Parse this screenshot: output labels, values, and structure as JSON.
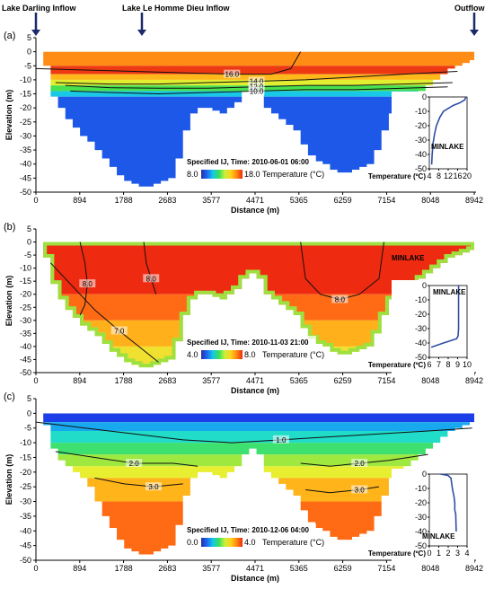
{
  "header": {
    "left_label": "Lake Darling Inflow",
    "mid_label": "Lake Le Homme Dieu Inflow",
    "right_label": "Outflow"
  },
  "colorbar_gradient": [
    "#2a2aa8",
    "#1b6bf2",
    "#14c8e8",
    "#35e05a",
    "#c8f03a",
    "#ffd21a",
    "#ff8a10",
    "#ee2a10"
  ],
  "chart_data": [
    {
      "type": "heatmap",
      "panel": "(a)",
      "xlabel": "Distance (m)",
      "ylabel": "Elevation (m)",
      "xticks": [
        0,
        894,
        1788,
        2683,
        3577,
        4471,
        5365,
        6259,
        7154,
        8048,
        8942
      ],
      "yticks": [
        5,
        0,
        -5,
        -10,
        -15,
        -20,
        -25,
        -30,
        -35,
        -40,
        -45,
        -50
      ],
      "xlim": [
        0,
        8942
      ],
      "ylim": [
        -50,
        5
      ],
      "bathymetry": {
        "x": [
          0,
          150,
          300,
          450,
          600,
          750,
          900,
          1050,
          1200,
          1350,
          1500,
          1650,
          1800,
          1950,
          2100,
          2250,
          2400,
          2550,
          2700,
          2850,
          3000,
          3150,
          3300,
          3450,
          3600,
          3750,
          3900,
          4050,
          4200,
          4350,
          4500,
          4650,
          4800,
          4950,
          5100,
          5250,
          5400,
          5550,
          5700,
          5850,
          6000,
          6150,
          6300,
          6450,
          6600,
          6750,
          6900,
          7050,
          7200,
          7350,
          7500,
          7650,
          7800,
          7950,
          8100,
          8250,
          8400,
          8550,
          8700,
          8850,
          8942
        ],
        "bottom": [
          0,
          -5,
          -16,
          -20,
          -24,
          -27,
          -30,
          -32,
          -35,
          -38,
          -41,
          -44,
          -46,
          -47,
          -48,
          -48,
          -47,
          -46,
          -45,
          -38,
          -28,
          -22,
          -20,
          -20,
          -21,
          -22,
          -20,
          -18,
          -14,
          -12,
          -14,
          -20,
          -22,
          -24,
          -26,
          -28,
          -33,
          -37,
          -39,
          -40,
          -42,
          -43,
          -43,
          -42,
          -41,
          -40,
          -35,
          -28,
          -22,
          -20,
          -18,
          -16,
          -14,
          -12,
          -10,
          -8,
          -6,
          -5,
          -4,
          -3,
          0
        ]
      },
      "contours": [
        {
          "label": "16.0",
          "x": [
            0,
            1000,
            2000,
            3000,
            4000,
            4800,
            5200,
            5400
          ],
          "y": [
            -6,
            -6.5,
            -7,
            -7.5,
            -8,
            -8,
            -6,
            0
          ]
        },
        {
          "label": "14.0",
          "x": [
            400,
            1500,
            2500,
            3500,
            4500,
            5500,
            6500,
            7500,
            8600
          ],
          "y": [
            -11,
            -11.5,
            -11.5,
            -11,
            -10.5,
            -10,
            -9,
            -8,
            -7
          ]
        },
        {
          "label": "12.0",
          "x": [
            600,
            1500,
            2500,
            3500,
            4500,
            5500,
            6500,
            7500,
            8500
          ],
          "y": [
            -12,
            -12.8,
            -13,
            -13,
            -12.5,
            -12,
            -12,
            -11.5,
            -11
          ]
        },
        {
          "label": "10.0",
          "x": [
            700,
            1500,
            2500,
            3500,
            4500,
            5500,
            6500,
            7500,
            8400
          ],
          "y": [
            -14,
            -14.5,
            -15,
            -14.5,
            -14,
            -13.5,
            -13.5,
            -13,
            -12.5
          ]
        }
      ],
      "temperature_bands": [
        {
          "depth": [
            0,
            -5
          ],
          "color": "#ff8c14"
        },
        {
          "depth": [
            -5,
            -8
          ],
          "color": "#ee3a12"
        },
        {
          "depth": [
            -8,
            -10
          ],
          "color": "#ffb81a"
        },
        {
          "depth": [
            -10,
            -12
          ],
          "color": "#e4ee30"
        },
        {
          "depth": [
            -12,
            -14
          ],
          "color": "#48e04e"
        },
        {
          "depth": [
            -14,
            -16
          ],
          "color": "#18c8e6"
        },
        {
          "depth": [
            -16,
            -50
          ],
          "color": "#1e58e8"
        }
      ],
      "caption": "Specified IJ, Time: 2010-06-01 06:00",
      "colorbar": {
        "min": 8.0,
        "max": 18.0,
        "min_label": "8.0",
        "max_label": "18.0",
        "title": "Temperature (°C)"
      },
      "inset": {
        "label": "MINLAKE",
        "xlabel": "Temperature (ºC)",
        "xticks": [
          4,
          8,
          12,
          16,
          20
        ],
        "yticks": [
          0,
          -10,
          -20,
          -30,
          -40,
          -50
        ],
        "xlim": [
          4,
          20
        ],
        "ylim": [
          -50,
          0
        ],
        "profile": {
          "temperature": [
            19.5,
            19,
            17,
            14,
            12,
            10,
            8.5,
            7,
            6.2,
            5.6,
            5.2,
            5
          ],
          "elevation": [
            0,
            -2,
            -4,
            -6,
            -8,
            -10,
            -14,
            -20,
            -26,
            -32,
            -40,
            -47
          ]
        }
      }
    },
    {
      "type": "heatmap",
      "panel": "(b)",
      "xlabel": "Distance (m)",
      "ylabel": "Elevation (m)",
      "xticks": [
        0,
        894,
        1788,
        2683,
        3577,
        4471,
        5365,
        6259,
        7154,
        8048,
        8942
      ],
      "yticks": [
        5,
        0,
        -5,
        -10,
        -15,
        -20,
        -25,
        -30,
        -35,
        -40,
        -45,
        -50
      ],
      "xlim": [
        0,
        8942
      ],
      "ylim": [
        -50,
        5
      ],
      "bathymetry": {
        "x": [
          0,
          150,
          300,
          450,
          600,
          750,
          900,
          1050,
          1200,
          1350,
          1500,
          1650,
          1800,
          1950,
          2100,
          2250,
          2400,
          2550,
          2700,
          2850,
          3000,
          3150,
          3300,
          3450,
          3600,
          3750,
          3900,
          4050,
          4200,
          4350,
          4500,
          4650,
          4800,
          4950,
          5100,
          5250,
          5400,
          5550,
          5700,
          5850,
          6000,
          6150,
          6300,
          6450,
          6600,
          6750,
          6900,
          7050,
          7200,
          7350,
          7500,
          7650,
          7800,
          7950,
          8100,
          8250,
          8400,
          8550,
          8700,
          8850,
          8942
        ],
        "bottom": [
          0,
          -6,
          -16,
          -22,
          -26,
          -29,
          -32,
          -34,
          -36,
          -39,
          -42,
          -44,
          -46,
          -47,
          -48,
          -48,
          -47,
          -46,
          -45,
          -38,
          -28,
          -22,
          -20,
          -20,
          -21,
          -22,
          -20,
          -18,
          -14,
          -12,
          -14,
          -20,
          -22,
          -24,
          -26,
          -28,
          -33,
          -37,
          -39,
          -40,
          -42,
          -43,
          -43,
          -42,
          -41,
          -40,
          -35,
          -28,
          -22,
          -20,
          -18,
          -16,
          -14,
          -12,
          -10,
          -8,
          -6,
          -5,
          -4,
          -3,
          0
        ]
      },
      "contours": [
        {
          "label": "7.0",
          "x": [
            300,
            800,
            1200,
            1700,
            2100,
            2500
          ],
          "y": [
            -8,
            -18,
            -26,
            -34,
            -40,
            -46
          ]
        },
        {
          "label": "8.0",
          "x": [
            900,
            1000,
            1050,
            1000,
            900
          ],
          "y": [
            0,
            -8,
            -16,
            -24,
            -28
          ]
        },
        {
          "label": "8.0",
          "x": [
            2200,
            2250,
            2350,
            2450
          ],
          "y": [
            0,
            -8,
            -14,
            -20
          ]
        },
        {
          "label": "8.0",
          "x": [
            5400,
            5500,
            5800,
            6200,
            6600,
            7000,
            7100
          ],
          "y": [
            0,
            -14,
            -20,
            -22,
            -20,
            -14,
            0
          ]
        }
      ],
      "temperature_bands": [
        {
          "depth": [
            0,
            -20
          ],
          "color": "#ee2a10"
        },
        {
          "depth": [
            -20,
            -30
          ],
          "color": "#ff6a14"
        },
        {
          "depth": [
            -30,
            -40
          ],
          "color": "#ffb01a"
        },
        {
          "depth": [
            -40,
            -50
          ],
          "color": "#f0e030"
        }
      ],
      "edge_color": "#9ee040",
      "annotation": "MINLAKE",
      "caption": "Specified IJ, Time: 2010-11-03 21:00",
      "colorbar": {
        "min": 4.0,
        "max": 8.0,
        "min_label": "4.0",
        "max_label": "8.0",
        "title": "Temperature (°C)"
      },
      "inset": {
        "label": "MINLAKE",
        "xlabel": "Temperature (ºC)",
        "xticks": [
          6,
          7,
          8,
          9,
          10
        ],
        "yticks": [
          0,
          -10,
          -20,
          -30,
          -40,
          -50
        ],
        "xlim": [
          6,
          10
        ],
        "ylim": [
          -50,
          0
        ],
        "profile": {
          "temperature": [
            9.1,
            9.1,
            9.1,
            9.1,
            9.1,
            9.05,
            8.9,
            7.5,
            6.2
          ],
          "elevation": [
            0,
            -5,
            -10,
            -20,
            -30,
            -35,
            -37,
            -40,
            -43
          ]
        }
      }
    },
    {
      "type": "heatmap",
      "panel": "(c)",
      "xlabel": "Distance (m)",
      "ylabel": "Elevation (m)",
      "xticks": [
        0,
        894,
        1788,
        2683,
        3577,
        4471,
        5365,
        6259,
        7154,
        8048,
        8942
      ],
      "yticks": [
        5,
        0,
        -5,
        -10,
        -15,
        -20,
        -25,
        -30,
        -35,
        -40,
        -45,
        -50
      ],
      "xlim": [
        0,
        8942
      ],
      "ylim": [
        -50,
        5
      ],
      "bathymetry": {
        "x": [
          0,
          150,
          300,
          450,
          600,
          750,
          900,
          1050,
          1200,
          1350,
          1500,
          1650,
          1800,
          1950,
          2100,
          2250,
          2400,
          2550,
          2700,
          2850,
          3000,
          3150,
          3300,
          3450,
          3600,
          3750,
          3900,
          4050,
          4200,
          4350,
          4500,
          4650,
          4800,
          4950,
          5100,
          5250,
          5400,
          5550,
          5700,
          5850,
          6000,
          6150,
          6300,
          6450,
          6600,
          6750,
          6900,
          7050,
          7200,
          7350,
          7500,
          7650,
          7800,
          7950,
          8100,
          8250,
          8400,
          8550,
          8700,
          8850,
          8942
        ],
        "bottom": [
          0,
          -4,
          -12,
          -16,
          -18,
          -20,
          -22,
          -25,
          -30,
          -35,
          -39,
          -43,
          -46,
          -47,
          -48,
          -48,
          -47,
          -46,
          -45,
          -38,
          -28,
          -22,
          -20,
          -20,
          -21,
          -22,
          -20,
          -18,
          -14,
          -12,
          -14,
          -20,
          -22,
          -24,
          -26,
          -28,
          -33,
          -37,
          -39,
          -40,
          -42,
          -43,
          -43,
          -42,
          -41,
          -40,
          -35,
          -28,
          -22,
          -20,
          -18,
          -16,
          -14,
          -12,
          -10,
          -8,
          -6,
          -5,
          -4,
          -3,
          0
        ]
      },
      "contours": [
        {
          "label": "1.0",
          "x": [
            0,
            1000,
            2000,
            3000,
            4000,
            5000,
            6000,
            7000,
            8000,
            8900
          ],
          "y": [
            -3,
            -5,
            -7,
            -9,
            -10,
            -9,
            -8,
            -7,
            -6,
            -5
          ]
        },
        {
          "label": "2.0",
          "x": [
            400,
            1200,
            2000,
            2800,
            3300
          ],
          "y": [
            -13,
            -15,
            -17,
            -17,
            -18
          ]
        },
        {
          "label": "2.0",
          "x": [
            5400,
            6000,
            6600,
            7200,
            8000
          ],
          "y": [
            -17,
            -18,
            -17,
            -16,
            -14
          ]
        },
        {
          "label": "3.0",
          "x": [
            1200,
            1800,
            2400,
            3000
          ],
          "y": [
            -22,
            -24,
            -25,
            -24
          ]
        },
        {
          "label": "3.0",
          "x": [
            5500,
            6000,
            6600,
            7000
          ],
          "y": [
            -26,
            -27,
            -26,
            -25
          ]
        }
      ],
      "temperature_bands": [
        {
          "depth": [
            0,
            -3
          ],
          "color": "#1c3ee8"
        },
        {
          "depth": [
            -3,
            -6
          ],
          "color": "#18a8ee"
        },
        {
          "depth": [
            -6,
            -10
          ],
          "color": "#20dcc8"
        },
        {
          "depth": [
            -10,
            -14
          ],
          "color": "#3ee070"
        },
        {
          "depth": [
            -14,
            -18
          ],
          "color": "#9ee840"
        },
        {
          "depth": [
            -18,
            -22
          ],
          "color": "#e8ee30"
        },
        {
          "depth": [
            -22,
            -30
          ],
          "color": "#ffb41a"
        },
        {
          "depth": [
            -30,
            -50
          ],
          "color": "#ff6a14"
        }
      ],
      "caption": "Specified IJ, Time: 2010-12-06 04:00",
      "colorbar": {
        "min": 0.0,
        "max": 4.0,
        "min_label": "0.0",
        "max_label": "4.0",
        "title": "Temperature (°C)"
      },
      "inset": {
        "label": "MINLAKE",
        "xlabel": "Temperature (ºC)",
        "xticks": [
          0,
          1,
          2,
          3,
          4
        ],
        "yticks": [
          0,
          -10,
          -20,
          -30,
          -40,
          -50
        ],
        "xlim": [
          0,
          4
        ],
        "ylim": [
          -50,
          0
        ],
        "profile": {
          "temperature": [
            1.2,
            2.0,
            2.3,
            2.4,
            2.5,
            2.6,
            2.7,
            2.7,
            2.8,
            2.85
          ],
          "elevation": [
            0,
            -1,
            -3,
            -8,
            -12,
            -15,
            -20,
            -25,
            -28,
            -40
          ]
        }
      }
    }
  ]
}
